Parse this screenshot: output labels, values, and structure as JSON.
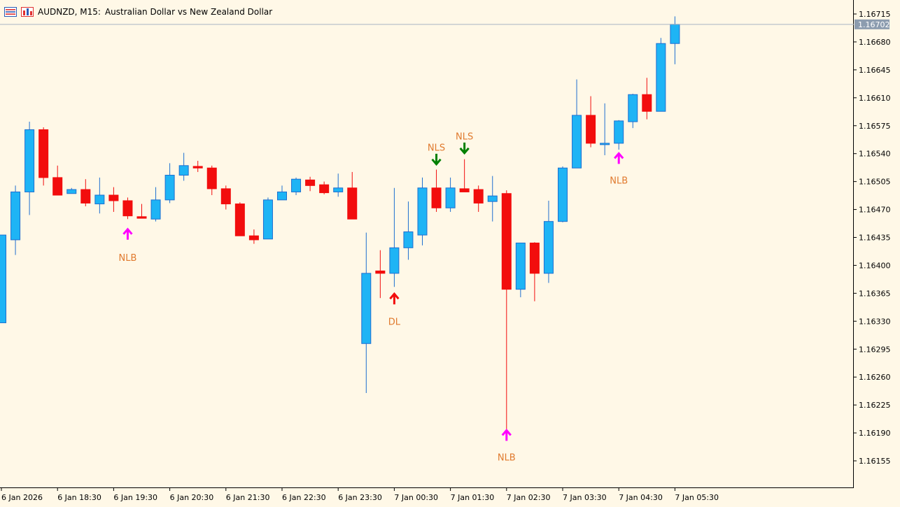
{
  "header": {
    "symbol_title": "AUDNZD, M15:",
    "description": "Australian Dollar vs New Zealand Dollar",
    "icons": [
      "chart-list-icon",
      "chart-bars-icon"
    ]
  },
  "colors": {
    "background": "#FFF8E7",
    "bull": "#1EB4F5",
    "bull_border": "#1E6FD0",
    "bear": "#F20D0D",
    "label": "#E07A2E",
    "arrow_up_magenta": "#FF00FF",
    "arrow_up_red": "#F20D0D",
    "arrow_down_green": "#008000",
    "price_tag_bg": "#8C9CAF",
    "current_line": "#A7B4C2"
  },
  "chart_data": {
    "type": "candlestick",
    "symbol": "AUDNZD",
    "timeframe": "M15",
    "ylim": [
      1.16125,
      1.1673
    ],
    "price_ticks": [
      "1.16715",
      "1.16680",
      "1.16645",
      "1.16610",
      "1.16575",
      "1.16540",
      "1.16505",
      "1.16470",
      "1.16435",
      "1.16400",
      "1.16365",
      "1.16330",
      "1.16295",
      "1.16260",
      "1.16225",
      "1.16190",
      "1.16155"
    ],
    "time_labels": [
      {
        "bar": 0,
        "label": "6 Jan 2026"
      },
      {
        "bar": 4,
        "label": "6 Jan 18:30"
      },
      {
        "bar": 8,
        "label": "6 Jan 19:30"
      },
      {
        "bar": 12,
        "label": "6 Jan 20:30"
      },
      {
        "bar": 16,
        "label": "6 Jan 21:30"
      },
      {
        "bar": 20,
        "label": "6 Jan 22:30"
      },
      {
        "bar": 24,
        "label": "6 Jan 23:30"
      },
      {
        "bar": 28,
        "label": "7 Jan 00:30"
      },
      {
        "bar": 32,
        "label": "7 Jan 01:30"
      },
      {
        "bar": 36,
        "label": "7 Jan 02:30"
      },
      {
        "bar": 40,
        "label": "7 Jan 03:30"
      },
      {
        "bar": 44,
        "label": "7 Jan 04:30"
      },
      {
        "bar": 48,
        "label": "7 Jan 05:30"
      }
    ],
    "current_price": "1.16702",
    "candles": [
      {
        "o": 1.16328,
        "h": 1.16438,
        "l": 1.16328,
        "c": 1.16438
      },
      {
        "o": 1.16432,
        "h": 1.165,
        "l": 1.16413,
        "c": 1.16492
      },
      {
        "o": 1.16492,
        "h": 1.1658,
        "l": 1.16463,
        "c": 1.1657
      },
      {
        "o": 1.1657,
        "h": 1.16573,
        "l": 1.165,
        "c": 1.1651
      },
      {
        "o": 1.1651,
        "h": 1.16525,
        "l": 1.1649,
        "c": 1.16488
      },
      {
        "o": 1.1649,
        "h": 1.16497,
        "l": 1.1649,
        "c": 1.16495
      },
      {
        "o": 1.16495,
        "h": 1.16508,
        "l": 1.16474,
        "c": 1.16478
      },
      {
        "o": 1.16477,
        "h": 1.1651,
        "l": 1.16465,
        "c": 1.16488
      },
      {
        "o": 1.16488,
        "h": 1.16498,
        "l": 1.16467,
        "c": 1.16481
      },
      {
        "o": 1.16481,
        "h": 1.16485,
        "l": 1.16458,
        "c": 1.16462
      },
      {
        "o": 1.16461,
        "h": 1.16477,
        "l": 1.16459,
        "c": 1.16459
      },
      {
        "o": 1.16458,
        "h": 1.16498,
        "l": 1.16455,
        "c": 1.16482
      },
      {
        "o": 1.16482,
        "h": 1.16528,
        "l": 1.16478,
        "c": 1.16513
      },
      {
        "o": 1.16513,
        "h": 1.16541,
        "l": 1.16506,
        "c": 1.16525
      },
      {
        "o": 1.16524,
        "h": 1.16531,
        "l": 1.16517,
        "c": 1.16522
      },
      {
        "o": 1.16522,
        "h": 1.16525,
        "l": 1.16488,
        "c": 1.16496
      },
      {
        "o": 1.16496,
        "h": 1.165,
        "l": 1.1647,
        "c": 1.16477
      },
      {
        "o": 1.16477,
        "h": 1.16479,
        "l": 1.16437,
        "c": 1.16437
      },
      {
        "o": 1.16437,
        "h": 1.16445,
        "l": 1.16427,
        "c": 1.16432
      },
      {
        "o": 1.16433,
        "h": 1.16485,
        "l": 1.16433,
        "c": 1.16482
      },
      {
        "o": 1.16482,
        "h": 1.165,
        "l": 1.16482,
        "c": 1.16492
      },
      {
        "o": 1.16492,
        "h": 1.1651,
        "l": 1.16488,
        "c": 1.16508
      },
      {
        "o": 1.16507,
        "h": 1.16511,
        "l": 1.16493,
        "c": 1.165
      },
      {
        "o": 1.16501,
        "h": 1.16505,
        "l": 1.16489,
        "c": 1.16491
      },
      {
        "o": 1.16492,
        "h": 1.16515,
        "l": 1.16486,
        "c": 1.16497
      },
      {
        "o": 1.16497,
        "h": 1.16517,
        "l": 1.16458,
        "c": 1.16458
      },
      {
        "o": 1.16302,
        "h": 1.16441,
        "l": 1.1624,
        "c": 1.1639
      },
      {
        "o": 1.16393,
        "h": 1.16419,
        "l": 1.16359,
        "c": 1.1639
      },
      {
        "o": 1.1639,
        "h": 1.16497,
        "l": 1.16373,
        "c": 1.16422
      },
      {
        "o": 1.16422,
        "h": 1.1648,
        "l": 1.16407,
        "c": 1.16442
      },
      {
        "o": 1.16438,
        "h": 1.1651,
        "l": 1.16425,
        "c": 1.16497
      },
      {
        "o": 1.16497,
        "h": 1.1652,
        "l": 1.16467,
        "c": 1.16472
      },
      {
        "o": 1.16472,
        "h": 1.1651,
        "l": 1.16467,
        "c": 1.16497
      },
      {
        "o": 1.16496,
        "h": 1.16533,
        "l": 1.16494,
        "c": 1.16492
      },
      {
        "o": 1.16495,
        "h": 1.165,
        "l": 1.16467,
        "c": 1.16478
      },
      {
        "o": 1.1648,
        "h": 1.16512,
        "l": 1.16455,
        "c": 1.16487
      },
      {
        "o": 1.1649,
        "h": 1.16494,
        "l": 1.16192,
        "c": 1.1637
      },
      {
        "o": 1.1637,
        "h": 1.16427,
        "l": 1.1636,
        "c": 1.16428
      },
      {
        "o": 1.16428,
        "h": 1.16429,
        "l": 1.16355,
        "c": 1.1639
      },
      {
        "o": 1.1639,
        "h": 1.16481,
        "l": 1.16378,
        "c": 1.16455
      },
      {
        "o": 1.16455,
        "h": 1.16524,
        "l": 1.16454,
        "c": 1.16522
      },
      {
        "o": 1.16522,
        "h": 1.16633,
        "l": 1.16522,
        "c": 1.16588
      },
      {
        "o": 1.16588,
        "h": 1.16612,
        "l": 1.16548,
        "c": 1.16553
      },
      {
        "o": 1.16552,
        "h": 1.16603,
        "l": 1.16538,
        "c": 1.16553
      },
      {
        "o": 1.16553,
        "h": 1.16582,
        "l": 1.16545,
        "c": 1.16581
      },
      {
        "o": 1.1658,
        "h": 1.16615,
        "l": 1.16572,
        "c": 1.16614
      },
      {
        "o": 1.16614,
        "h": 1.16635,
        "l": 1.16583,
        "c": 1.16593
      },
      {
        "o": 1.16593,
        "h": 1.16685,
        "l": 1.16593,
        "c": 1.16678
      },
      {
        "o": 1.16678,
        "h": 1.16712,
        "l": 1.16652,
        "c": 1.16702
      }
    ],
    "signals": [
      {
        "bar": 9,
        "type": "up",
        "color": "#FF00FF",
        "price": 1.1644,
        "label": "NLB",
        "label_price": 1.1641
      },
      {
        "bar": 28,
        "type": "up",
        "color": "#F20D0D",
        "price": 1.16359,
        "label": "DL",
        "label_price": 1.1633
      },
      {
        "bar": 31,
        "type": "down",
        "color": "#008000",
        "price": 1.16532,
        "label": "NLS",
        "label_price": 1.16548
      },
      {
        "bar": 33,
        "type": "down",
        "color": "#008000",
        "price": 1.16546,
        "label": "NLS",
        "label_price": 1.16562
      },
      {
        "bar": 36,
        "type": "up",
        "color": "#FF00FF",
        "price": 1.16188,
        "label": "NLB",
        "label_price": 1.1616
      },
      {
        "bar": 44,
        "type": "up",
        "color": "#FF00FF",
        "price": 1.16535,
        "label": "NLB",
        "label_price": 1.16507
      }
    ]
  }
}
